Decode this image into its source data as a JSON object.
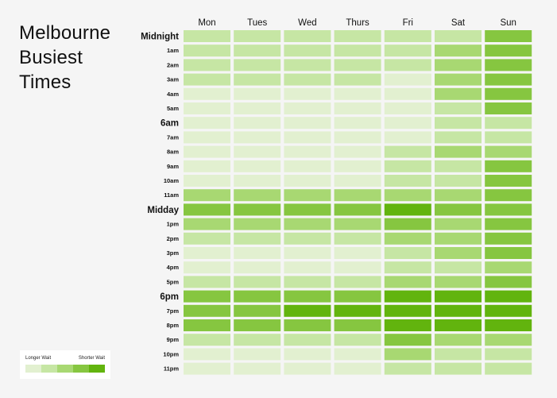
{
  "title_lines": [
    "Melbourne",
    "Busiest",
    "Times"
  ],
  "legend": {
    "left_label": "Longer Wait",
    "right_label": "Shorter Wait",
    "colors": [
      "#e2f0d0",
      "#c6e6a4",
      "#a8d872",
      "#86c640",
      "#62b40e"
    ]
  },
  "colors": [
    "#e2f0d0",
    "#c6e6a4",
    "#a8d872",
    "#86c640",
    "#62b40e"
  ],
  "chart_data": {
    "type": "heatmap",
    "title": "Melbourne Busiest Times",
    "columns": [
      "Mon",
      "Tues",
      "Wed",
      "Thurs",
      "Fri",
      "Sat",
      "Sun"
    ],
    "rows": [
      "Midnight",
      "1am",
      "2am",
      "3am",
      "4am",
      "5am",
      "6am",
      "7am",
      "8am",
      "9am",
      "10am",
      "11am",
      "Midday",
      "1pm",
      "2pm",
      "3pm",
      "4pm",
      "5pm",
      "6pm",
      "7pm",
      "8pm",
      "9pm",
      "10pm",
      "11pm"
    ],
    "emphasized_rows": [
      "Midnight",
      "6am",
      "Midday",
      "6pm"
    ],
    "scale": "0 = Longer Wait, 4 = Shorter Wait",
    "values": [
      [
        1,
        1,
        1,
        1,
        1,
        1,
        3
      ],
      [
        1,
        1,
        1,
        1,
        1,
        2,
        3
      ],
      [
        1,
        1,
        1,
        1,
        1,
        2,
        3
      ],
      [
        1,
        1,
        1,
        1,
        0,
        2,
        3
      ],
      [
        0,
        0,
        0,
        0,
        0,
        2,
        3
      ],
      [
        0,
        0,
        0,
        0,
        0,
        1,
        3
      ],
      [
        0,
        0,
        0,
        0,
        0,
        1,
        1
      ],
      [
        0,
        0,
        0,
        0,
        0,
        1,
        1
      ],
      [
        0,
        0,
        0,
        0,
        1,
        2,
        2
      ],
      [
        0,
        0,
        0,
        0,
        1,
        1,
        3
      ],
      [
        0,
        0,
        0,
        0,
        1,
        1,
        3
      ],
      [
        2,
        2,
        2,
        2,
        2,
        2,
        3
      ],
      [
        3,
        3,
        3,
        3,
        4,
        3,
        3
      ],
      [
        2,
        2,
        2,
        2,
        3,
        2,
        3
      ],
      [
        1,
        1,
        1,
        1,
        2,
        2,
        3
      ],
      [
        0,
        0,
        0,
        0,
        1,
        2,
        3
      ],
      [
        0,
        0,
        0,
        0,
        1,
        1,
        2
      ],
      [
        1,
        1,
        1,
        1,
        2,
        2,
        3
      ],
      [
        3,
        3,
        3,
        3,
        4,
        4,
        4
      ],
      [
        3,
        3,
        4,
        4,
        4,
        4,
        4
      ],
      [
        3,
        3,
        3,
        3,
        4,
        4,
        4
      ],
      [
        1,
        1,
        1,
        1,
        3,
        2,
        2
      ],
      [
        0,
        0,
        0,
        0,
        2,
        1,
        1
      ],
      [
        0,
        0,
        0,
        0,
        1,
        1,
        1
      ]
    ]
  }
}
